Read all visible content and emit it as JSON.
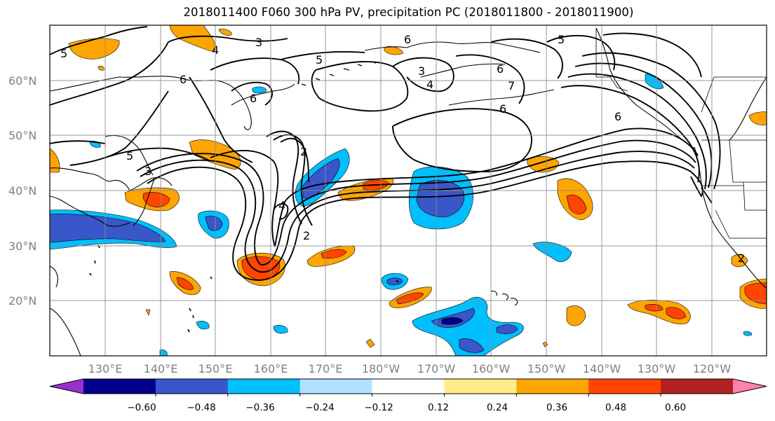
{
  "title": "2018011400 F060 300 hPa PV, precipitation PC (2018011800 - 2018011900)",
  "map": {
    "lon_labels": [
      "130°E",
      "140°E",
      "150°E",
      "160°E",
      "170°E",
      "180°W",
      "170°W",
      "160°W",
      "150°W",
      "140°W",
      "130°W",
      "120°W"
    ],
    "lat_labels": [
      "60°N",
      "50°N",
      "40°N",
      "30°N",
      "20°N"
    ],
    "contour_labels": [
      "5",
      "4",
      "3",
      "5",
      "6",
      "6",
      "3",
      "4",
      "6",
      "5",
      "6",
      "6",
      "7",
      "2",
      "5",
      "3",
      "4",
      "2",
      "6",
      "2"
    ]
  },
  "colorbar": {
    "tick_labels": [
      "−0.60",
      "−0.48",
      "−0.36",
      "−0.24",
      "−0.12",
      "0.12",
      "0.24",
      "0.36",
      "0.48",
      "0.60"
    ],
    "colors": [
      "#9932cc",
      "#00008b",
      "#3a57c9",
      "#00bfff",
      "#b0e2ff",
      "#ffffff",
      "#ffec8b",
      "#ffa500",
      "#ff4500",
      "#b22222",
      "#ff82ab"
    ]
  },
  "chart_data": {
    "type": "heatmap",
    "title": "2018011400 F060 300 hPa PV, precipitation PC (2018011800 - 2018011900)",
    "fields": [
      "300 hPa PV (contours)",
      "precipitation PC (shaded)"
    ],
    "lon_range_deg": [
      120,
      250
    ],
    "lat_range_deg": [
      10,
      70
    ],
    "pv_contour_levels": [
      2,
      3,
      4,
      5,
      6,
      7
    ],
    "shading_levels": [
      -0.6,
      -0.48,
      -0.36,
      -0.24,
      -0.12,
      0.12,
      0.24,
      0.36,
      0.48,
      0.6
    ],
    "grid": true
  }
}
